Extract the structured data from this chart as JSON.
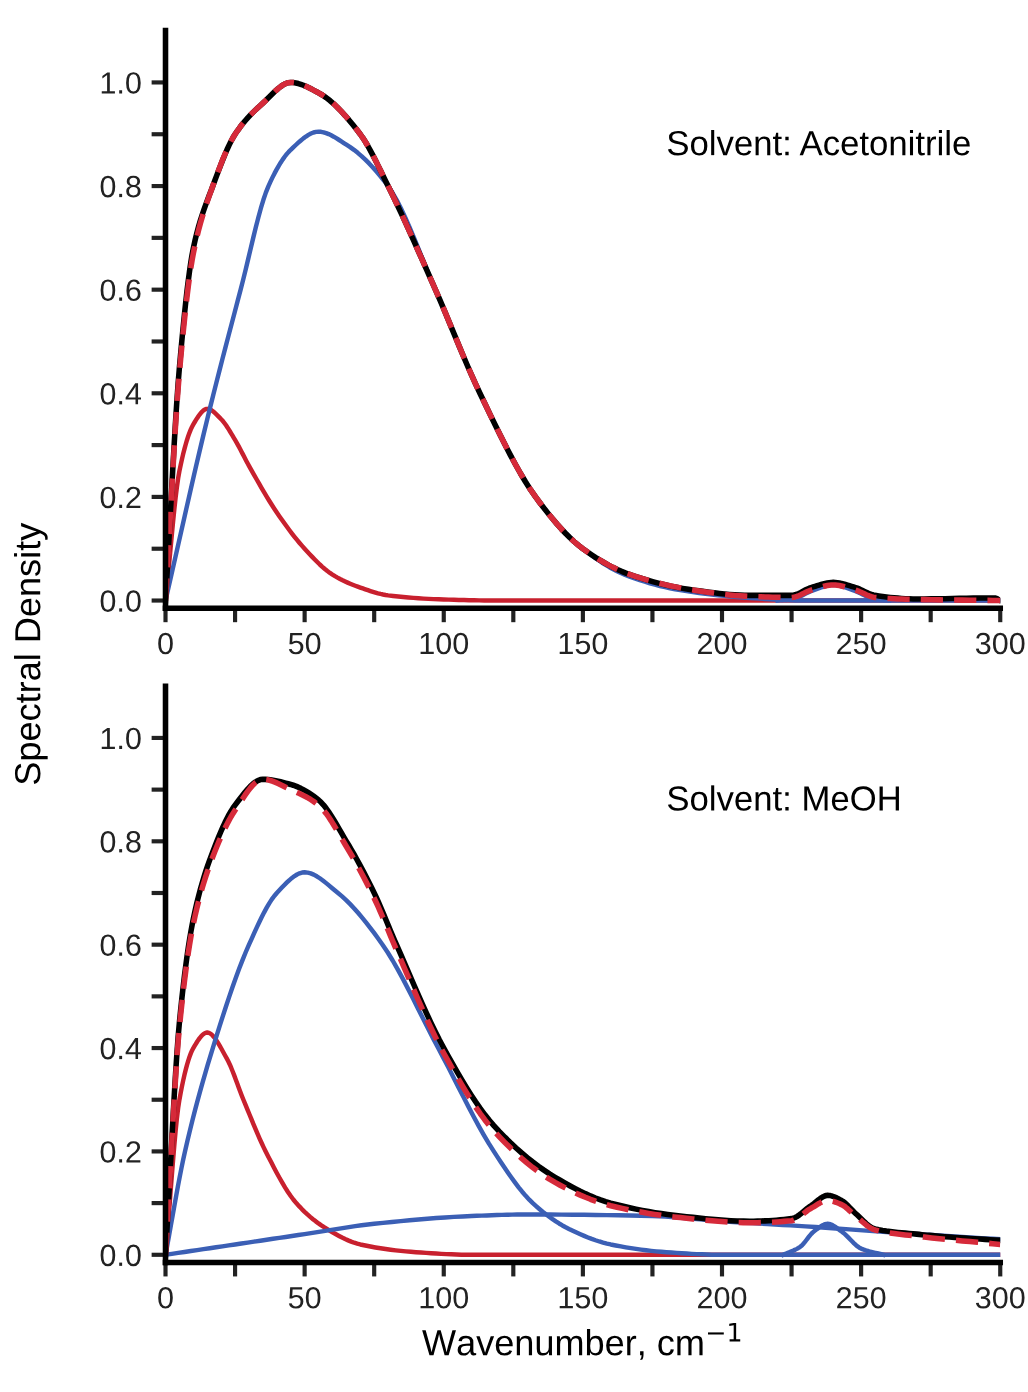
{
  "chart_data": [
    {
      "type": "line",
      "ylabel": "Spectral Density",
      "annotations": [
        "Solvent: Acetonitrile"
      ],
      "xlim": [
        0,
        300
      ],
      "ylim": [
        -0.015,
        1.1
      ],
      "xticks": [
        0,
        {
          "value": 25,
          "label": null
        },
        50,
        {
          "value": 75,
          "label": null
        },
        100,
        {
          "value": 125,
          "label": null
        },
        150,
        {
          "value": 175,
          "label": null
        },
        200,
        {
          "value": 225,
          "label": null
        },
        250,
        {
          "value": 275,
          "label": null
        },
        300
      ],
      "yticks": [
        {
          "value": 0,
          "label": "0.0"
        },
        {
          "value": 0.1,
          "label": null
        },
        0.2,
        {
          "value": 0.3,
          "label": null
        },
        0.4,
        {
          "value": 0.5,
          "label": null
        },
        0.6,
        {
          "value": 0.7,
          "label": null
        },
        0.8,
        {
          "value": 0.9,
          "label": null
        },
        {
          "value": 1.0,
          "label": "1.0"
        }
      ],
      "grid": false,
      "legend": false,
      "marker": "none",
      "series": [
        {
          "color": "#c8202e",
          "line_style": "solid",
          "x": [
            0,
            5,
            10,
            15,
            20,
            25,
            30,
            40,
            50,
            60,
            70,
            80,
            100,
            120,
            300
          ],
          "values": [
            0,
            0.25,
            0.34,
            0.37,
            0.35,
            0.31,
            0.26,
            0.17,
            0.1,
            0.05,
            0.025,
            0.01,
            0.002,
            0,
            0
          ]
        },
        {
          "color": "#3b5fb5",
          "line_style": "solid",
          "x": [
            0,
            15,
            27,
            37,
            45,
            55,
            65,
            80,
            97,
            113,
            133,
            150,
            165,
            185,
            210,
            230,
            300
          ],
          "values": [
            0,
            0.35,
            0.6,
            0.8,
            0.87,
            0.905,
            0.88,
            0.8,
            0.6,
            0.4,
            0.2,
            0.1,
            0.05,
            0.02,
            0.005,
            0,
            0
          ]
        },
        {
          "color": "#3b5fb5",
          "line_style": "solid",
          "x": [
            220,
            225,
            232,
            240,
            248,
            255,
            260
          ],
          "values": [
            0,
            0.002,
            0.018,
            0.03,
            0.018,
            0.002,
            0
          ]
        },
        {
          "color": "#000000",
          "line_style": "solid",
          "x": [
            0,
            5,
            10,
            17,
            25,
            35,
            45,
            55,
            70,
            80,
            97,
            113,
            133,
            150,
            167,
            190,
            210,
            225,
            232,
            240,
            248,
            255,
            270,
            298,
            300
          ],
          "values": [
            0,
            0.45,
            0.68,
            0.8,
            0.9,
            0.96,
            1.0,
            0.98,
            0.9,
            0.8,
            0.6,
            0.4,
            0.2,
            0.1,
            0.05,
            0.02,
            0.01,
            0.01,
            0.025,
            0.035,
            0.025,
            0.01,
            0.003,
            0.005,
            0
          ]
        },
        {
          "color": "#d62a3a",
          "line_style": "dashed",
          "x": [
            0,
            5,
            10,
            17,
            25,
            35,
            45,
            55,
            70,
            80,
            97,
            113,
            133,
            150,
            167,
            190,
            210,
            225,
            232,
            240,
            248,
            255,
            270,
            300
          ],
          "values": [
            0,
            0.44,
            0.67,
            0.8,
            0.9,
            0.96,
            1.0,
            0.98,
            0.9,
            0.8,
            0.6,
            0.4,
            0.2,
            0.1,
            0.05,
            0.02,
            0.008,
            0.006,
            0.02,
            0.03,
            0.02,
            0.006,
            0.002,
            0
          ]
        }
      ]
    },
    {
      "type": "line",
      "xlabel": "Wavenumber, cm$^{−1}$",
      "annotations": [
        "Solvent: MeOH"
      ],
      "xlim": [
        0,
        300
      ],
      "ylim": [
        -0.015,
        1.1
      ],
      "xticks": [
        0,
        {
          "value": 25,
          "label": null
        },
        50,
        {
          "value": 75,
          "label": null
        },
        100,
        {
          "value": 125,
          "label": null
        },
        150,
        {
          "value": 175,
          "label": null
        },
        200,
        {
          "value": 225,
          "label": null
        },
        250,
        {
          "value": 275,
          "label": null
        },
        300
      ],
      "yticks": [
        {
          "value": 0,
          "label": "0.0"
        },
        {
          "value": 0.1,
          "label": null
        },
        0.2,
        {
          "value": 0.3,
          "label": null
        },
        0.4,
        {
          "value": 0.5,
          "label": null
        },
        0.6,
        {
          "value": 0.7,
          "label": null
        },
        0.8,
        {
          "value": 0.9,
          "label": null
        },
        {
          "value": 1.0,
          "label": "1.0"
        }
      ],
      "grid": false,
      "legend": false,
      "marker": "none",
      "series": [
        {
          "color": "#c8202e",
          "line_style": "solid",
          "x": [
            0,
            5,
            10,
            15,
            22,
            28,
            36,
            47,
            58,
            70,
            90,
            110,
            300
          ],
          "values": [
            0,
            0.3,
            0.4,
            0.43,
            0.38,
            0.3,
            0.2,
            0.1,
            0.05,
            0.02,
            0.005,
            0,
            0
          ]
        },
        {
          "color": "#3b5fb5",
          "line_style": "solid",
          "x": [
            0,
            7,
            17,
            30,
            40,
            50,
            62,
            78,
            98,
            118,
            132,
            145,
            160,
            180,
            200,
            300
          ],
          "values": [
            0,
            0.2,
            0.4,
            0.6,
            0.7,
            0.74,
            0.7,
            0.6,
            0.4,
            0.2,
            0.1,
            0.05,
            0.02,
            0.005,
            0,
            0
          ]
        },
        {
          "color": "#3b5fb5",
          "line_style": "solid",
          "x": [
            0,
            25,
            50,
            75,
            110,
            130,
            175,
            200,
            230,
            270,
            300
          ],
          "values": [
            0,
            0.02,
            0.04,
            0.06,
            0.075,
            0.078,
            0.075,
            0.065,
            0.055,
            0.04,
            0.03
          ]
        },
        {
          "color": "#3b5fb5",
          "line_style": "solid",
          "x": [
            222,
            228,
            233,
            238,
            243,
            250,
            258
          ],
          "values": [
            0,
            0.015,
            0.045,
            0.06,
            0.045,
            0.012,
            0
          ]
        },
        {
          "color": "#000000",
          "line_style": "solid",
          "x": [
            0,
            5,
            10,
            17,
            25,
            35,
            45,
            55,
            65,
            75,
            83,
            100,
            118,
            140,
            160,
            185,
            210,
            225,
            232,
            238,
            243,
            248,
            255,
            270,
            280,
            300
          ],
          "values": [
            0,
            0.45,
            0.65,
            0.78,
            0.87,
            0.92,
            0.91,
            0.88,
            0.8,
            0.7,
            0.6,
            0.4,
            0.25,
            0.15,
            0.1,
            0.075,
            0.065,
            0.07,
            0.095,
            0.115,
            0.105,
            0.08,
            0.05,
            0.04,
            0.035,
            0.028
          ]
        },
        {
          "color": "#d62a3a",
          "line_style": "dashed",
          "x": [
            0,
            5,
            10,
            17,
            25,
            35,
            45,
            55,
            65,
            75,
            83,
            100,
            118,
            140,
            160,
            185,
            210,
            225,
            232,
            238,
            243,
            248,
            255,
            270,
            300
          ],
          "values": [
            0,
            0.44,
            0.64,
            0.77,
            0.86,
            0.92,
            0.9,
            0.87,
            0.79,
            0.69,
            0.59,
            0.39,
            0.24,
            0.14,
            0.095,
            0.072,
            0.062,
            0.066,
            0.09,
            0.105,
            0.097,
            0.075,
            0.048,
            0.036,
            0.02
          ]
        }
      ]
    }
  ]
}
